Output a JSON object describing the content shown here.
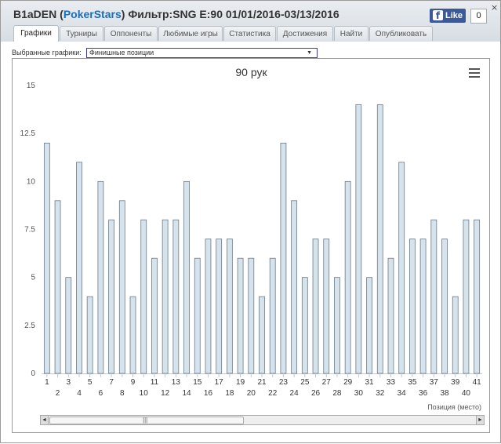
{
  "header": {
    "player": "B1aDEN",
    "site": "PokerStars",
    "filter_text": "Фильтр:SNG E:90 01/01/2016-03/13/2016",
    "like_label": "Like",
    "like_count": "0",
    "close_glyph": "×"
  },
  "tabs": [
    {
      "label": "Графики",
      "active": true
    },
    {
      "label": "Турниры",
      "active": false
    },
    {
      "label": "Оппоненты",
      "active": false
    },
    {
      "label": "Любимые игры",
      "active": false
    },
    {
      "label": "Статистика",
      "active": false
    },
    {
      "label": "Достижения",
      "active": false
    },
    {
      "label": "Найти",
      "active": false
    },
    {
      "label": "Опубликовать",
      "active": false
    }
  ],
  "chart_select": {
    "label": "Выбранные графики:",
    "value": "Финишные позиции"
  },
  "chart_data": {
    "type": "bar",
    "title": "90 рук",
    "xlabel": "Позиция (место)",
    "ylabel": "",
    "ylim": [
      0,
      15
    ],
    "yticks": [
      "0",
      "2.5",
      "5",
      "7.5",
      "10",
      "12.5",
      "15"
    ],
    "categories": [
      "1",
      "2",
      "3",
      "4",
      "5",
      "6",
      "7",
      "8",
      "9",
      "10",
      "11",
      "12",
      "13",
      "14",
      "15",
      "16",
      "17",
      "18",
      "19",
      "20",
      "21",
      "22",
      "23",
      "24",
      "25",
      "26",
      "27",
      "28",
      "29",
      "30",
      "31",
      "32",
      "33",
      "34",
      "35",
      "36",
      "37",
      "38",
      "39",
      "40",
      "41"
    ],
    "values": [
      12,
      9,
      5,
      11,
      4,
      10,
      8,
      9,
      4,
      8,
      6,
      8,
      8,
      10,
      6,
      7,
      7,
      7,
      6,
      6,
      4,
      6,
      12,
      9,
      5,
      7,
      7,
      5,
      10,
      14,
      5,
      14,
      6,
      11,
      7,
      7,
      8,
      7,
      4,
      8,
      8
    ],
    "bar_color": "#d6e2ec",
    "bar_stroke": "#6a7b8a",
    "grid": false,
    "legend": "none"
  },
  "scrollbar": {
    "left_glyph": "◄",
    "right_glyph": "►",
    "grip": "|||"
  },
  "icons": {
    "chart_menu": "hamburger-menu-icon",
    "facebook": "facebook-f-icon"
  }
}
